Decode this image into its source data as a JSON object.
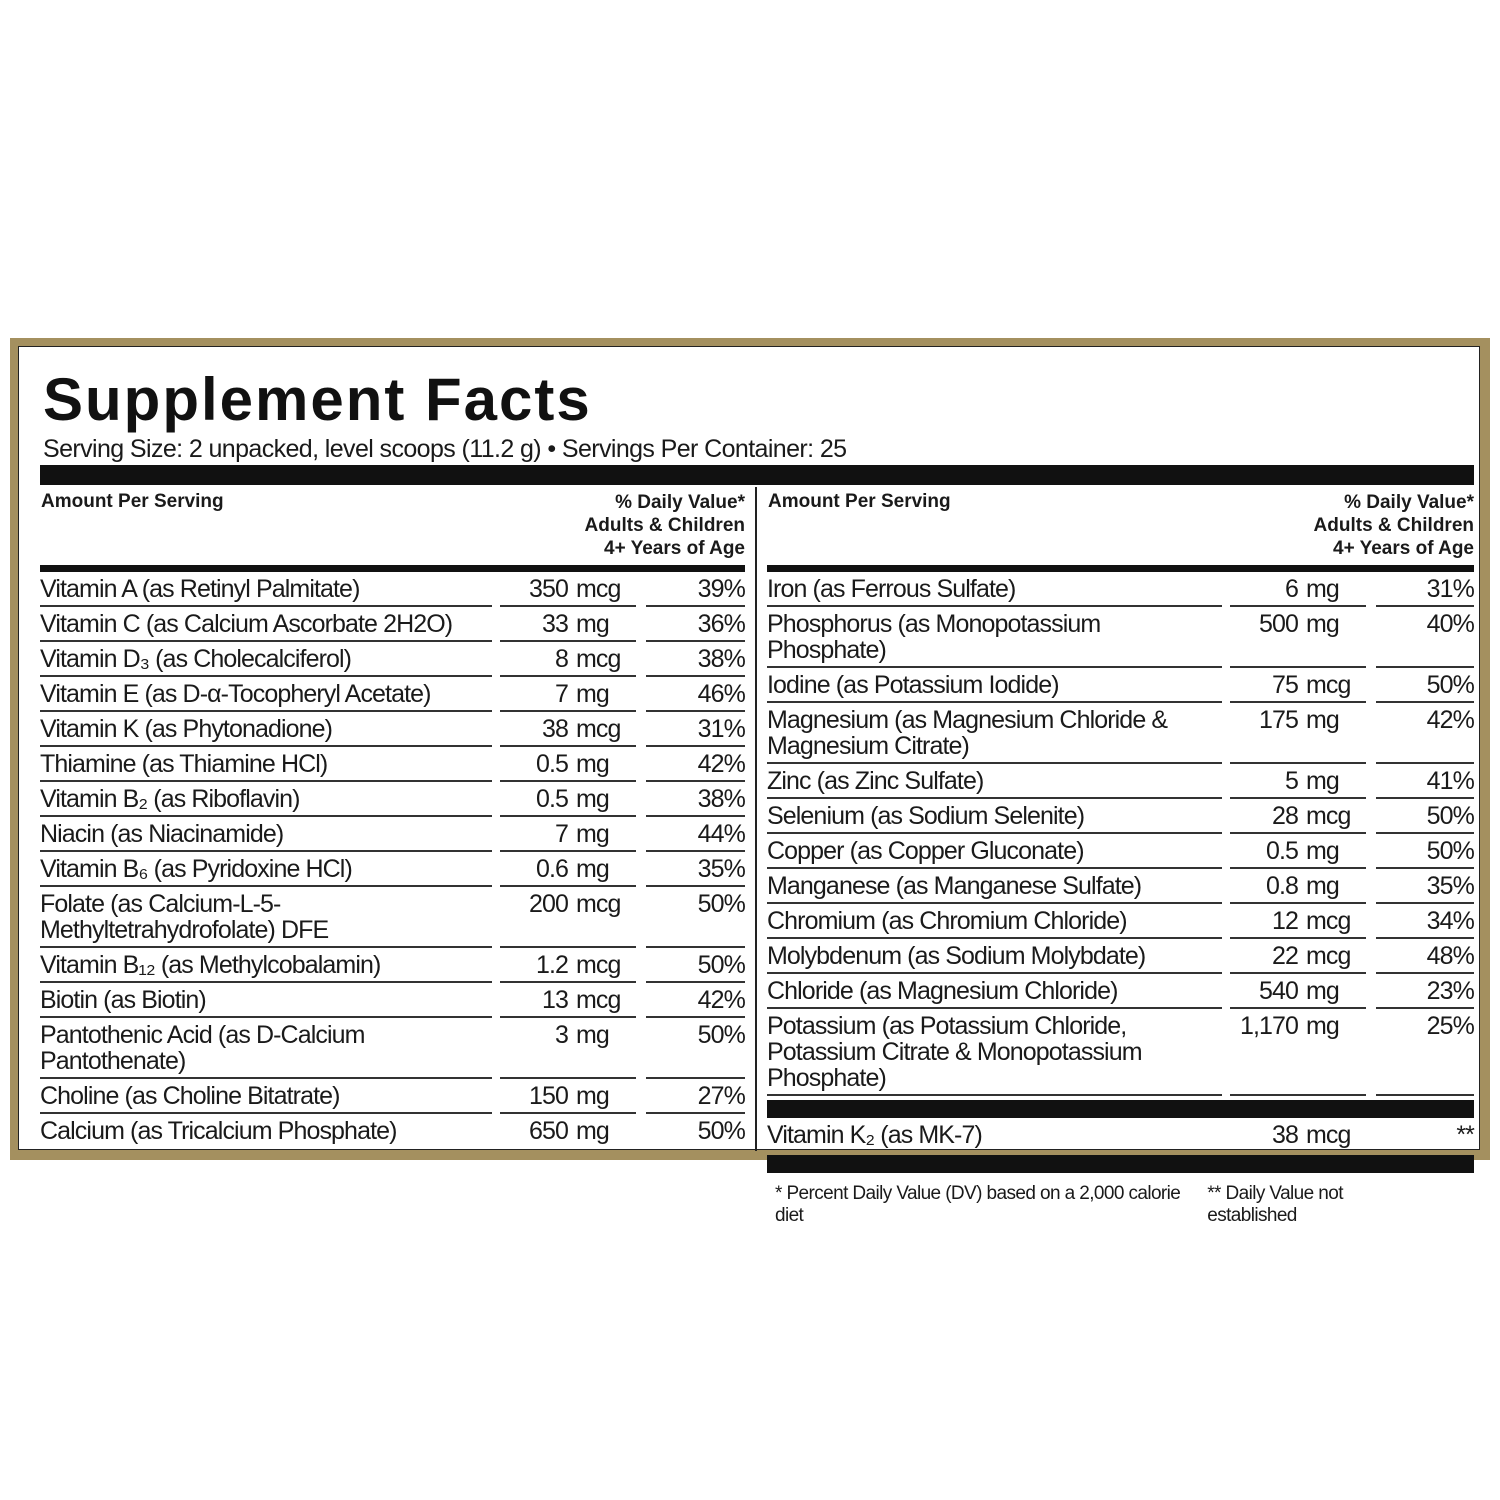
{
  "title": "Supplement Facts",
  "serving": "Serving Size: 2 unpacked, level scoops (11.2 g)  •  Servings Per Container: 25",
  "columns": [
    {
      "header": {
        "amount": "Amount Per Serving",
        "dv": [
          "% Daily Value*",
          "Adults & Children",
          "4+ Years of Age"
        ]
      },
      "rows": [
        [
          "Vitamin A (as Retinyl Palmitate)",
          "350",
          "mcg",
          "39%"
        ],
        [
          "Vitamin C (as Calcium Ascorbate 2H2O)",
          "33",
          "mg",
          "36%"
        ],
        [
          "Vitamin D₃ (as Cholecalciferol)",
          "8",
          "mcg",
          "38%"
        ],
        [
          "Vitamin E (as D-α-Tocopheryl Acetate)",
          "7",
          "mg",
          "46%"
        ],
        [
          "Vitamin K (as Phytonadione)",
          "38",
          "mcg",
          "31%"
        ],
        [
          "Thiamine (as Thiamine HCl)",
          "0.5",
          "mg",
          "42%"
        ],
        [
          "Vitamin B₂ (as Riboflavin)",
          "0.5",
          "mg",
          "38%"
        ],
        [
          "Niacin (as Niacinamide)",
          "7",
          "mg",
          "44%"
        ],
        [
          "Vitamin B₆ (as Pyridoxine HCl)",
          "0.6",
          "mg",
          "35%"
        ],
        [
          "Folate (as Calcium-L-5-Methyltetrahydrofolate) DFE",
          "200",
          "mcg",
          "50%"
        ],
        [
          "Vitamin B₁₂ (as Methylcobalamin)",
          "1.2",
          "mcg",
          "50%"
        ],
        [
          "Biotin (as Biotin)",
          "13",
          "mcg",
          "42%"
        ],
        [
          "Pantothenic Acid (as D-Calcium Pantothenate)",
          "3",
          "mg",
          "50%"
        ],
        [
          "Choline (as Choline Bitatrate)",
          "150",
          "mg",
          "27%"
        ],
        [
          "Calcium (as Tricalcium Phosphate)",
          "650",
          "mg",
          "50%"
        ]
      ]
    },
    {
      "header": {
        "amount": "Amount Per Serving",
        "dv": [
          "% Daily Value*",
          "Adults & Children",
          "4+ Years of Age"
        ]
      },
      "rows": [
        [
          "Iron (as Ferrous Sulfate)",
          "6",
          "mg",
          "31%"
        ],
        [
          "Phosphorus (as Monopotassium Phosphate)",
          "500",
          "mg",
          "40%"
        ],
        [
          "Iodine (as Potassium Iodide)",
          "75",
          "mcg",
          "50%"
        ],
        [
          "Magnesium (as Magnesium Chloride & Magnesium Citrate)",
          "175",
          "mg",
          "42%"
        ],
        [
          "Zinc (as Zinc Sulfate)",
          "5",
          "mg",
          "41%"
        ],
        [
          "Selenium (as Sodium Selenite)",
          "28",
          "mcg",
          "50%"
        ],
        [
          "Copper (as Copper Gluconate)",
          "0.5",
          "mg",
          "50%"
        ],
        [
          "Manganese (as Manganese Sulfate)",
          "0.8",
          "mg",
          "35%"
        ],
        [
          "Chromium (as Chromium Chloride)",
          "12",
          "mcg",
          "34%"
        ],
        [
          "Molybdenum (as Sodium Molybdate)",
          "22",
          "mcg",
          "48%"
        ],
        [
          "Chloride (as Magnesium Chloride)",
          "540",
          "mg",
          "23%"
        ],
        [
          "Potassium (as Potassium Chloride, Potassium Citrate & Monopotassium Phosphate)",
          "1,170",
          "mg",
          "25%"
        ]
      ],
      "extra_rows": [
        [
          "Vitamin K₂ (as MK-7)",
          "38",
          "mcg",
          "**"
        ]
      ]
    }
  ],
  "footnotes": [
    "*  Percent Daily Value (DV) based on a 2,000 calorie diet",
    "** Daily Value not established"
  ]
}
